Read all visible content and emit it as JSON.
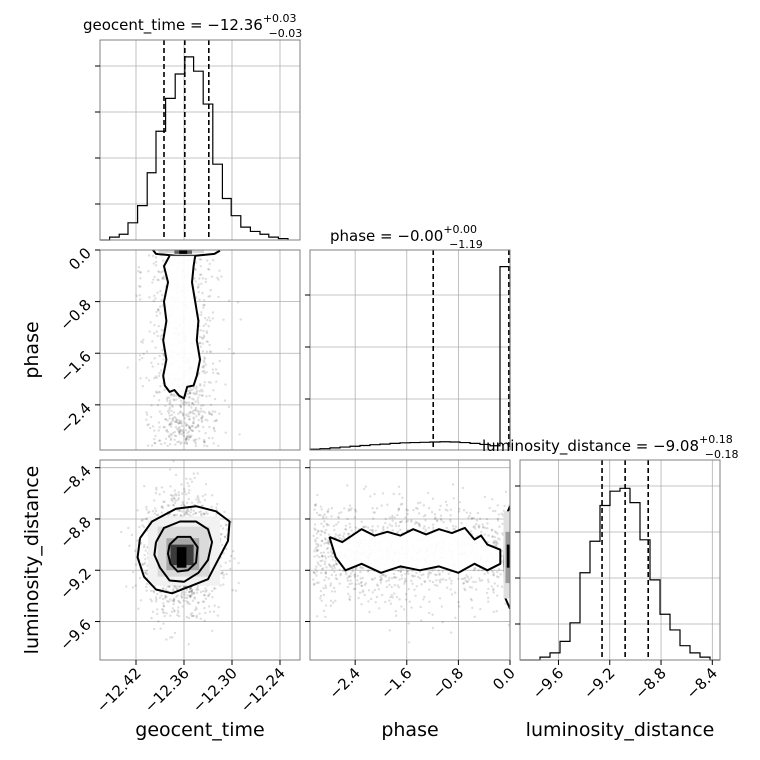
{
  "chart_data": {
    "type": "corner",
    "parameters": [
      {
        "name": "geocent_time",
        "axis_label": "geocent_time",
        "range": [
          -12.465,
          -12.215
        ],
        "ticks": [
          -12.42,
          -12.36,
          -12.3,
          -12.24
        ],
        "tick_labels": [
          "−12.42",
          "−12.36",
          "−12.30",
          "−12.24"
        ],
        "title_prefix": "geocent_time = ",
        "title_value": "−12.36",
        "title_plus": "+0.03",
        "title_minus": "−0.03",
        "quantiles": [
          -12.385,
          -12.359,
          -12.329
        ],
        "hist_bin_edges": [
          -12.465,
          -12.453,
          -12.441,
          -12.43,
          -12.418,
          -12.406,
          -12.395,
          -12.383,
          -12.371,
          -12.359,
          -12.348,
          -12.336,
          -12.324,
          -12.312,
          -12.301,
          -12.289,
          -12.277,
          -12.265,
          -12.254,
          -12.242,
          -12.23
        ],
        "hist_values": [
          0,
          2,
          4,
          12,
          24,
          47,
          76,
          99,
          116,
          128,
          118,
          95,
          53,
          29,
          17,
          9,
          6,
          4,
          2,
          1
        ]
      },
      {
        "name": "phase",
        "axis_label": "phase",
        "range": [
          -3.1,
          0.0
        ],
        "ticks": [
          -2.4,
          -1.6,
          -0.8,
          0.0
        ],
        "tick_labels": [
          "−2.4",
          "−1.6",
          "−0.8",
          "0.0"
        ],
        "title_prefix": "phase = ",
        "title_value": "−0.00",
        "title_plus": "+0.00",
        "title_minus": "−1.19",
        "quantiles": [
          -1.19,
          -0.002,
          0.0
        ],
        "hist_bin_edges": [
          -3.1,
          -2.945,
          -2.79,
          -2.635,
          -2.48,
          -2.325,
          -2.17,
          -2.015,
          -1.86,
          -1.705,
          -1.55,
          -1.395,
          -1.24,
          -1.085,
          -0.93,
          -0.775,
          -0.62,
          -0.465,
          -0.31,
          -0.155,
          0.0
        ],
        "hist_values": [
          0.3,
          0.5,
          0.8,
          1.1,
          1.4,
          1.7,
          2.0,
          2.2,
          2.5,
          2.7,
          2.8,
          2.9,
          3.0,
          3.1,
          3.0,
          2.8,
          2.5,
          2.1,
          1.6,
          69
        ]
      },
      {
        "name": "luminosity_distance",
        "axis_label": "luminosity_distance",
        "range": [
          -9.9,
          -8.34
        ],
        "ticks": [
          -9.6,
          -9.2,
          -8.8,
          -8.4
        ],
        "tick_labels": [
          "−9.6",
          "−9.2",
          "−8.8",
          "−8.4"
        ],
        "title_prefix": "luminosity_distance = ",
        "title_value": "−9.08",
        "title_plus": "+0.18",
        "title_minus": "−0.18",
        "quantiles": [
          -9.26,
          -9.08,
          -8.9
        ],
        "hist_bin_edges": [
          -9.9,
          -9.822,
          -9.744,
          -9.666,
          -9.588,
          -9.51,
          -9.432,
          -9.354,
          -9.276,
          -9.198,
          -9.12,
          -9.042,
          -8.964,
          -8.886,
          -8.808,
          -8.73,
          -8.652,
          -8.574,
          -8.496,
          -8.418,
          -8.34
        ],
        "hist_values": [
          0,
          0,
          2,
          5,
          13,
          26,
          61,
          83,
          108,
          118,
          120,
          110,
          84,
          56,
          32,
          21,
          10,
          5,
          2,
          0
        ]
      }
    ],
    "hist_ymax": 130,
    "phase_hist_ymax": 70,
    "contours_2d": {
      "geocent_time__phase": [
        [
          [
            -12.4,
            0.02
          ],
          [
            -12.395,
            -0.06
          ],
          [
            -12.37,
            -0.09
          ],
          [
            -12.346,
            -0.09
          ],
          [
            -12.322,
            -0.06
          ],
          [
            -12.315,
            -0.01
          ]
        ],
        [
          [
            -12.378,
            -0.09
          ],
          [
            -12.385,
            -0.25
          ],
          [
            -12.38,
            -0.5
          ],
          [
            -12.385,
            -0.8
          ],
          [
            -12.382,
            -1.1
          ],
          [
            -12.386,
            -1.4
          ],
          [
            -12.382,
            -1.7
          ],
          [
            -12.386,
            -1.95
          ],
          [
            -12.384,
            -2.1
          ],
          [
            -12.378,
            -2.2
          ],
          [
            -12.372,
            -2.17
          ],
          [
            -12.366,
            -2.26
          ],
          [
            -12.36,
            -2.3
          ],
          [
            -12.356,
            -2.12
          ],
          [
            -12.348,
            -2.1
          ],
          [
            -12.344,
            -1.95
          ],
          [
            -12.34,
            -1.7
          ],
          [
            -12.344,
            -1.4
          ],
          [
            -12.342,
            -1.1
          ],
          [
            -12.346,
            -0.8
          ],
          [
            -12.35,
            -0.5
          ],
          [
            -12.348,
            -0.25
          ],
          [
            -12.346,
            -0.09
          ]
        ]
      ],
      "geocent_time__luminosity_distance": [
        [
          [
            -12.415,
            -8.95
          ],
          [
            -12.4,
            -8.82
          ],
          [
            -12.37,
            -8.72
          ],
          [
            -12.345,
            -8.7
          ],
          [
            -12.32,
            -8.74
          ],
          [
            -12.303,
            -8.82
          ],
          [
            -12.305,
            -8.97
          ],
          [
            -12.32,
            -9.15
          ],
          [
            -12.33,
            -9.27
          ],
          [
            -12.35,
            -9.32
          ],
          [
            -12.375,
            -9.38
          ],
          [
            -12.395,
            -9.35
          ],
          [
            -12.41,
            -9.25
          ],
          [
            -12.418,
            -9.1
          ],
          [
            -12.415,
            -8.95
          ]
        ],
        [
          [
            -12.395,
            -8.98
          ],
          [
            -12.385,
            -8.87
          ],
          [
            -12.365,
            -8.82
          ],
          [
            -12.345,
            -8.82
          ],
          [
            -12.33,
            -8.88
          ],
          [
            -12.325,
            -8.98
          ],
          [
            -12.33,
            -9.12
          ],
          [
            -12.342,
            -9.22
          ],
          [
            -12.36,
            -9.29
          ],
          [
            -12.378,
            -9.28
          ],
          [
            -12.39,
            -9.18
          ],
          [
            -12.397,
            -9.08
          ],
          [
            -12.395,
            -8.98
          ]
        ],
        [
          [
            -12.378,
            -9.0
          ],
          [
            -12.368,
            -8.94
          ],
          [
            -12.352,
            -8.94
          ],
          [
            -12.343,
            -9.02
          ],
          [
            -12.345,
            -9.14
          ],
          [
            -12.355,
            -9.2
          ],
          [
            -12.368,
            -9.21
          ],
          [
            -12.377,
            -9.15
          ],
          [
            -12.38,
            -9.07
          ],
          [
            -12.378,
            -9.0
          ]
        ]
      ],
      "phase__luminosity_distance": [
        [
          [
            -2.8,
            -8.94
          ],
          [
            -2.6,
            -8.98
          ],
          [
            -2.3,
            -8.88
          ],
          [
            -2.1,
            -8.93
          ],
          [
            -1.9,
            -8.9
          ],
          [
            -1.7,
            -8.93
          ],
          [
            -1.5,
            -8.88
          ],
          [
            -1.3,
            -8.92
          ],
          [
            -1.1,
            -8.88
          ],
          [
            -0.9,
            -8.91
          ],
          [
            -0.7,
            -8.87
          ],
          [
            -0.55,
            -8.96
          ],
          [
            -0.45,
            -8.93
          ],
          [
            -0.35,
            -9.0
          ],
          [
            -0.15,
            -9.04
          ],
          [
            -0.15,
            -9.15
          ],
          [
            -0.35,
            -9.2
          ],
          [
            -0.55,
            -9.15
          ],
          [
            -0.8,
            -9.22
          ],
          [
            -1.1,
            -9.17
          ],
          [
            -1.4,
            -9.2
          ],
          [
            -1.7,
            -9.17
          ],
          [
            -2.0,
            -9.22
          ],
          [
            -2.3,
            -9.15
          ],
          [
            -2.55,
            -9.2
          ],
          [
            -2.7,
            -9.1
          ],
          [
            -2.8,
            -8.94
          ]
        ],
        [
          [
            0.0,
            -8.7
          ],
          [
            -0.05,
            -8.76
          ],
          [
            -0.08,
            -8.95
          ],
          [
            -0.09,
            -9.15
          ],
          [
            -0.07,
            -9.42
          ],
          [
            0.0,
            -9.5
          ]
        ]
      ]
    }
  }
}
